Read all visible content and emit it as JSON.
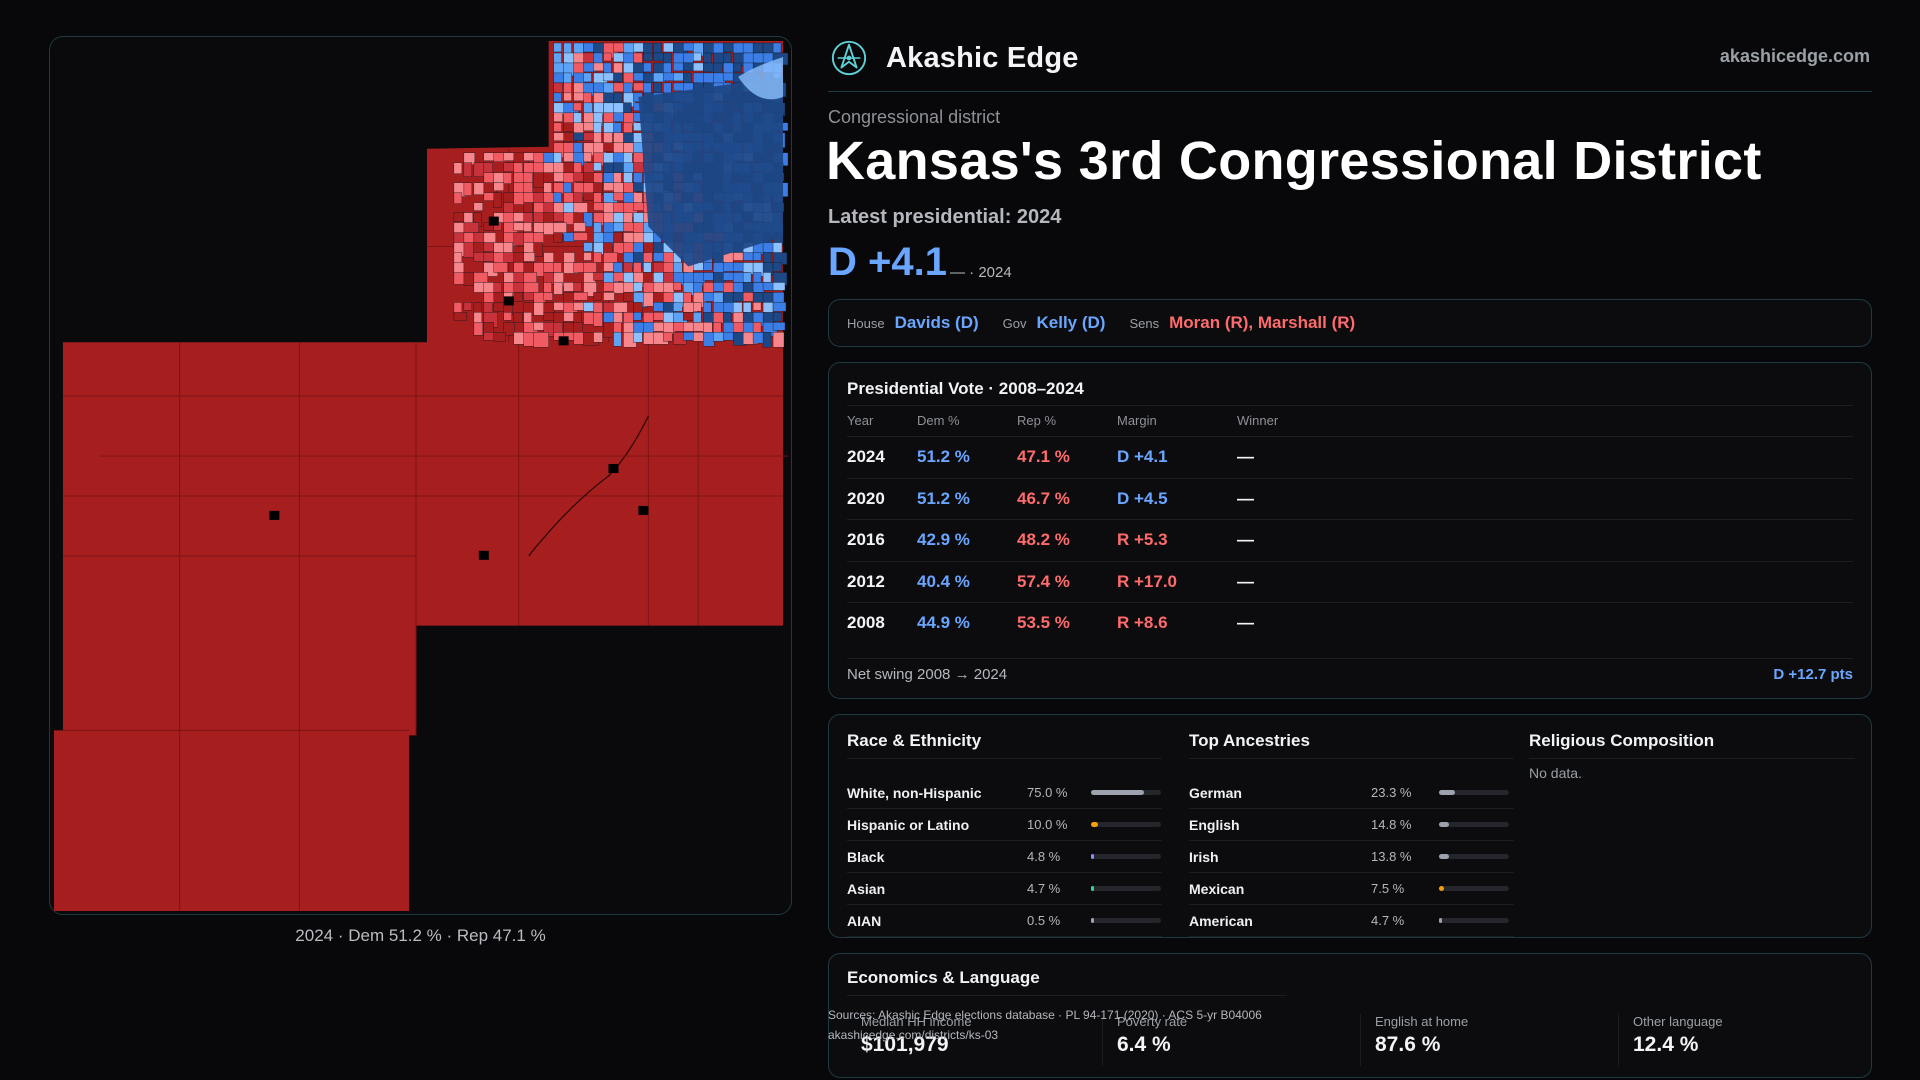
{
  "brand": {
    "name": "Akashic Edge",
    "url": "akashicedge.com",
    "logo_icon": "akashic-edge-logo-icon"
  },
  "header": {
    "eyebrow": "Congressional district",
    "title": "Kansas's 3rd Congressional District",
    "latest": "Latest presidential: 2024",
    "margin": "D +4.1",
    "margin_year": "— · 2024"
  },
  "officials": {
    "house_label": "House",
    "house": "Davids (D)",
    "gov_label": "Gov",
    "gov": "Kelly (D)",
    "sens_label": "Sens",
    "sens": "Moran (R), Marshall (R)"
  },
  "presidential": {
    "title": "Presidential Vote · 2008–2024",
    "headers": {
      "year": "Year",
      "dem": "Dem %",
      "rep": "Rep %",
      "margin": "Margin",
      "winner": "Winner"
    },
    "rows": [
      {
        "year": "2024",
        "dem": "51.2 %",
        "rep": "47.1 %",
        "margin": "D +4.1",
        "margin_party": "D",
        "winner": "—"
      },
      {
        "year": "2020",
        "dem": "51.2 %",
        "rep": "46.7 %",
        "margin": "D +4.5",
        "margin_party": "D",
        "winner": "—"
      },
      {
        "year": "2016",
        "dem": "42.9 %",
        "rep": "48.2 %",
        "margin": "R +5.3",
        "margin_party": "R",
        "winner": "—"
      },
      {
        "year": "2012",
        "dem": "40.4 %",
        "rep": "57.4 %",
        "margin": "R +17.0",
        "margin_party": "R",
        "winner": "—"
      },
      {
        "year": "2008",
        "dem": "44.9 %",
        "rep": "53.5 %",
        "margin": "R +8.6",
        "margin_party": "R",
        "winner": "—"
      }
    ],
    "swing_label": "Net swing 2008 → 2024",
    "swing_value": "D +12.7 pts"
  },
  "race": {
    "title": "Race & Ethnicity",
    "items": [
      {
        "label": "White, non-Hispanic",
        "value": "75.0 %",
        "pct": 75.0,
        "color": "#9ca3af"
      },
      {
        "label": "Hispanic or Latino",
        "value": "10.0 %",
        "pct": 10.0,
        "color": "#f59e0b"
      },
      {
        "label": "Black",
        "value": "4.8 %",
        "pct": 4.8,
        "color": "#8b8cf6"
      },
      {
        "label": "Asian",
        "value": "4.7 %",
        "pct": 4.7,
        "color": "#34d399"
      },
      {
        "label": "AIAN",
        "value": "0.5 %",
        "pct": 0.5,
        "color": "#9ca3af"
      }
    ]
  },
  "ancestry": {
    "title": "Top Ancestries",
    "items": [
      {
        "label": "German",
        "value": "23.3 %",
        "pct": 23.3,
        "color": "#9ca3af"
      },
      {
        "label": "English",
        "value": "14.8 %",
        "pct": 14.8,
        "color": "#9ca3af"
      },
      {
        "label": "Irish",
        "value": "13.8 %",
        "pct": 13.8,
        "color": "#9ca3af"
      },
      {
        "label": "Mexican",
        "value": "7.5 %",
        "pct": 7.5,
        "color": "#f59e0b"
      },
      {
        "label": "American",
        "value": "4.7 %",
        "pct": 4.7,
        "color": "#9ca3af"
      }
    ]
  },
  "religion": {
    "title": "Religious Composition",
    "empty": "No data."
  },
  "economics": {
    "title": "Economics & Language",
    "items": [
      {
        "label": "Median HH income",
        "value": "$101,979"
      },
      {
        "label": "Poverty rate",
        "value": "6.4 %"
      },
      {
        "label": "English at home",
        "value": "87.6 %"
      },
      {
        "label": "Other language",
        "value": "12.4 %"
      }
    ]
  },
  "sources": {
    "line1": "Sources: Akashic Edge elections database · PL 94-171 (2020) · ACS 5-yr B04006",
    "line2": "akashicedge.com/districts/ks-03"
  },
  "map": {
    "caption": "2024 · Dem 51.2 % · Rep 47.1 %",
    "colors": {
      "rep_strong": "#a61e1e",
      "rep_mid": "#c8323a",
      "rep_light": "#ef5a63",
      "rep_pale": "#f7868c",
      "dem_strong": "#1d4785",
      "dem_mid": "#3c7ee6",
      "dem_light": "#5da2f4",
      "dem_pale": "#8cc0ff",
      "no_data": "#000000"
    }
  }
}
